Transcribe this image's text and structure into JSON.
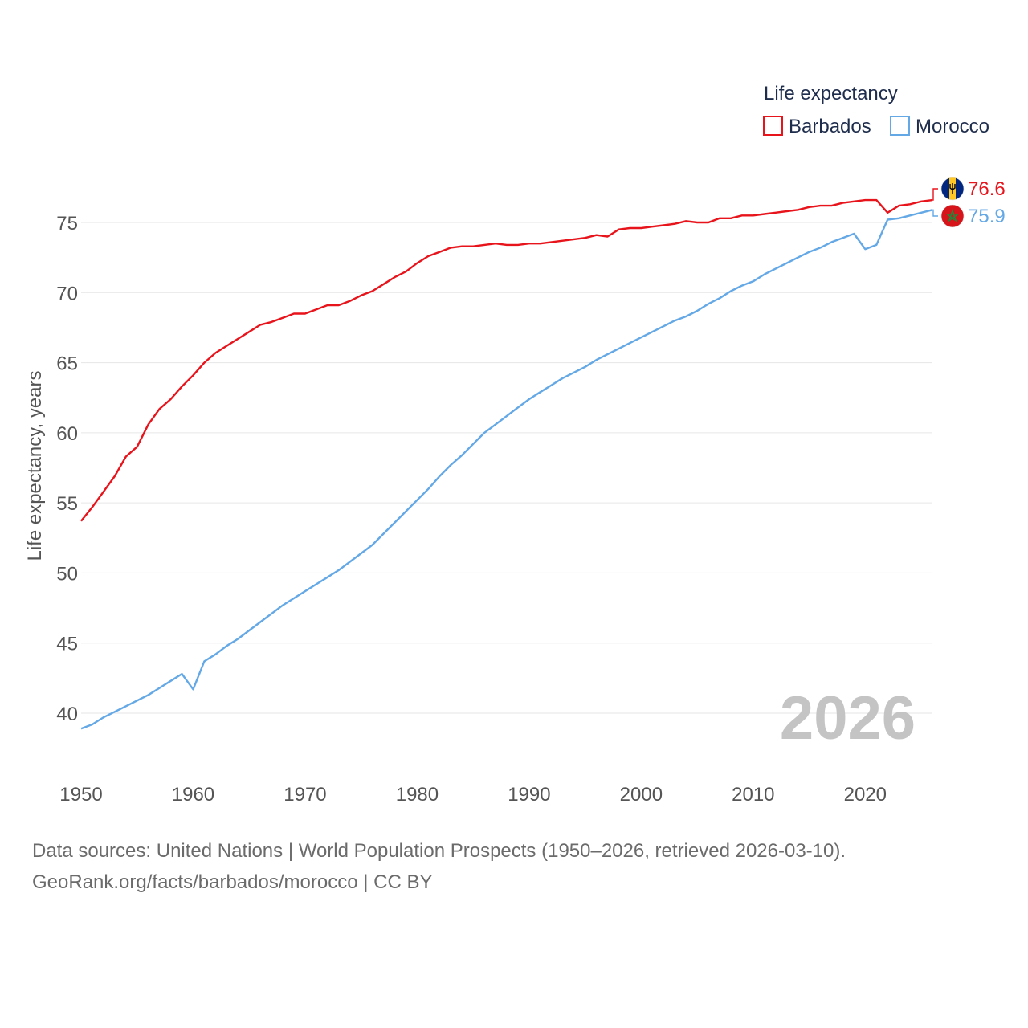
{
  "chart_data": {
    "type": "line",
    "ylabel": "Life expectancy, years",
    "xlabel": "",
    "xlim": [
      1950,
      2026
    ],
    "ylim": [
      37.5,
      78
    ],
    "xticks": [
      1950,
      1960,
      1970,
      1980,
      1990,
      2000,
      2010,
      2020
    ],
    "yticks": [
      40,
      45,
      50,
      55,
      60,
      65,
      70,
      75
    ],
    "grid": true,
    "legend": {
      "title": "Life expectancy",
      "placement": "top-right"
    },
    "current_year_label": "2026",
    "x": [
      1950,
      1951,
      1952,
      1953,
      1954,
      1955,
      1956,
      1957,
      1958,
      1959,
      1960,
      1961,
      1962,
      1963,
      1964,
      1965,
      1966,
      1967,
      1968,
      1969,
      1970,
      1971,
      1972,
      1973,
      1974,
      1975,
      1976,
      1977,
      1978,
      1979,
      1980,
      1981,
      1982,
      1983,
      1984,
      1985,
      1986,
      1987,
      1988,
      1989,
      1990,
      1991,
      1992,
      1993,
      1994,
      1995,
      1996,
      1997,
      1998,
      1999,
      2000,
      2001,
      2002,
      2003,
      2004,
      2005,
      2006,
      2007,
      2008,
      2009,
      2010,
      2011,
      2012,
      2013,
      2014,
      2015,
      2016,
      2017,
      2018,
      2019,
      2020,
      2021,
      2022,
      2023,
      2024,
      2025,
      2026
    ],
    "series": [
      {
        "name": "Barbados",
        "color": "#e8141c",
        "end_label": "76.6",
        "flag": "barbados-flag",
        "values": [
          53.7,
          54.7,
          55.8,
          56.9,
          58.3,
          59.0,
          60.6,
          61.7,
          62.4,
          63.3,
          64.1,
          65.0,
          65.7,
          66.2,
          66.7,
          67.2,
          67.7,
          67.9,
          68.2,
          68.5,
          68.5,
          68.8,
          69.1,
          69.1,
          69.4,
          69.8,
          70.1,
          70.6,
          71.1,
          71.5,
          72.1,
          72.6,
          72.9,
          73.2,
          73.3,
          73.3,
          73.4,
          73.5,
          73.4,
          73.4,
          73.5,
          73.5,
          73.6,
          73.7,
          73.8,
          73.9,
          74.1,
          74.0,
          74.5,
          74.6,
          74.6,
          74.7,
          74.8,
          74.9,
          75.1,
          75.0,
          75.0,
          75.3,
          75.3,
          75.5,
          75.5,
          75.6,
          75.7,
          75.8,
          75.9,
          76.1,
          76.2,
          76.2,
          76.4,
          76.5,
          76.6,
          76.6,
          75.7,
          76.2,
          76.3,
          76.5,
          76.6
        ]
      },
      {
        "name": "Morocco",
        "color": "#64a8e6",
        "end_label": "75.9",
        "flag": "morocco-flag",
        "values": [
          38.9,
          39.2,
          39.7,
          40.1,
          40.5,
          40.9,
          41.3,
          41.8,
          42.3,
          42.8,
          41.7,
          43.7,
          44.2,
          44.8,
          45.3,
          45.9,
          46.5,
          47.1,
          47.7,
          48.2,
          48.7,
          49.2,
          49.7,
          50.2,
          50.8,
          51.4,
          52.0,
          52.8,
          53.6,
          54.4,
          55.2,
          56.0,
          56.9,
          57.7,
          58.4,
          59.2,
          60.0,
          60.6,
          61.2,
          61.8,
          62.4,
          62.9,
          63.4,
          63.9,
          64.3,
          64.7,
          65.2,
          65.6,
          66.0,
          66.4,
          66.8,
          67.2,
          67.6,
          68.0,
          68.3,
          68.7,
          69.2,
          69.6,
          70.1,
          70.5,
          70.8,
          71.3,
          71.7,
          72.1,
          72.5,
          72.9,
          73.2,
          73.6,
          73.9,
          74.2,
          73.1,
          73.4,
          75.2,
          75.3,
          75.5,
          75.7,
          75.9
        ]
      }
    ]
  },
  "source": {
    "line1": "Data sources: United Nations | World Population Prospects (1950–2026, retrieved 2026-03-10).",
    "line2": "GeoRank.org/facts/barbados/morocco | CC BY"
  }
}
